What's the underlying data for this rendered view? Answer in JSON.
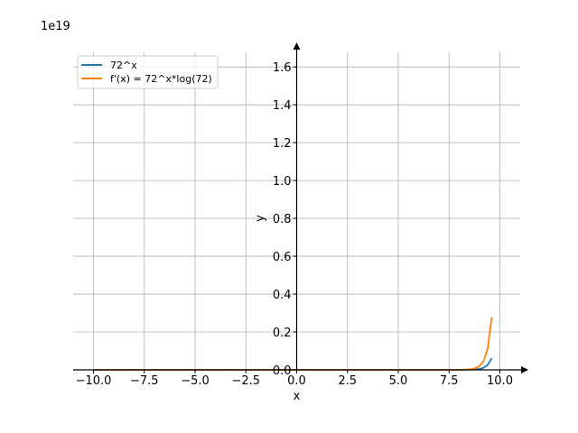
{
  "chart_data": {
    "type": "line",
    "title": "",
    "xlabel": "x",
    "ylabel": "y",
    "offset_text": "1e19",
    "xlim": [
      -11.0,
      11.0
    ],
    "ylim": [
      0.0,
      1.72
    ],
    "x_ticks": [
      -10.0,
      -7.5,
      -5.0,
      -2.5,
      0.0,
      2.5,
      5.0,
      7.5,
      10.0
    ],
    "x_tick_labels": [
      "−10.0",
      "−7.5",
      "−5.0",
      "−2.5",
      "0.0",
      "2.5",
      "5.0",
      "7.5",
      "10.0"
    ],
    "y_ticks": [
      0.0,
      0.2,
      0.4,
      0.6,
      0.8,
      1.0,
      1.2,
      1.4,
      1.6
    ],
    "y_tick_labels": [
      "0.0",
      "0.2",
      "0.4",
      "0.6",
      "0.8",
      "1.0",
      "1.2",
      "1.4",
      "1.6"
    ],
    "grid": true,
    "legend_position": "top-left",
    "series": [
      {
        "name": "72^x",
        "color": "#1f77b4",
        "x": [
          -10.0,
          -5.0,
          0.0,
          5.0,
          8.0,
          8.5,
          8.8,
          9.0,
          9.2,
          9.4,
          9.6
        ],
        "y": [
          0.0,
          0.0,
          0.0,
          0.0,
          7e-05,
          0.0006,
          0.0021,
          0.0047,
          0.011,
          0.026,
          0.061
        ]
      },
      {
        "name": "f'(x) = 72^x*log(72)",
        "color": "#ff7f0e",
        "x": [
          -10.0,
          -5.0,
          0.0,
          5.0,
          8.0,
          8.5,
          8.8,
          9.0,
          9.2,
          9.4,
          9.6
        ],
        "y": [
          0.0,
          0.0,
          0.0,
          0.0,
          0.0003,
          0.0026,
          0.009,
          0.0201,
          0.047,
          0.111,
          0.279
        ]
      }
    ]
  }
}
